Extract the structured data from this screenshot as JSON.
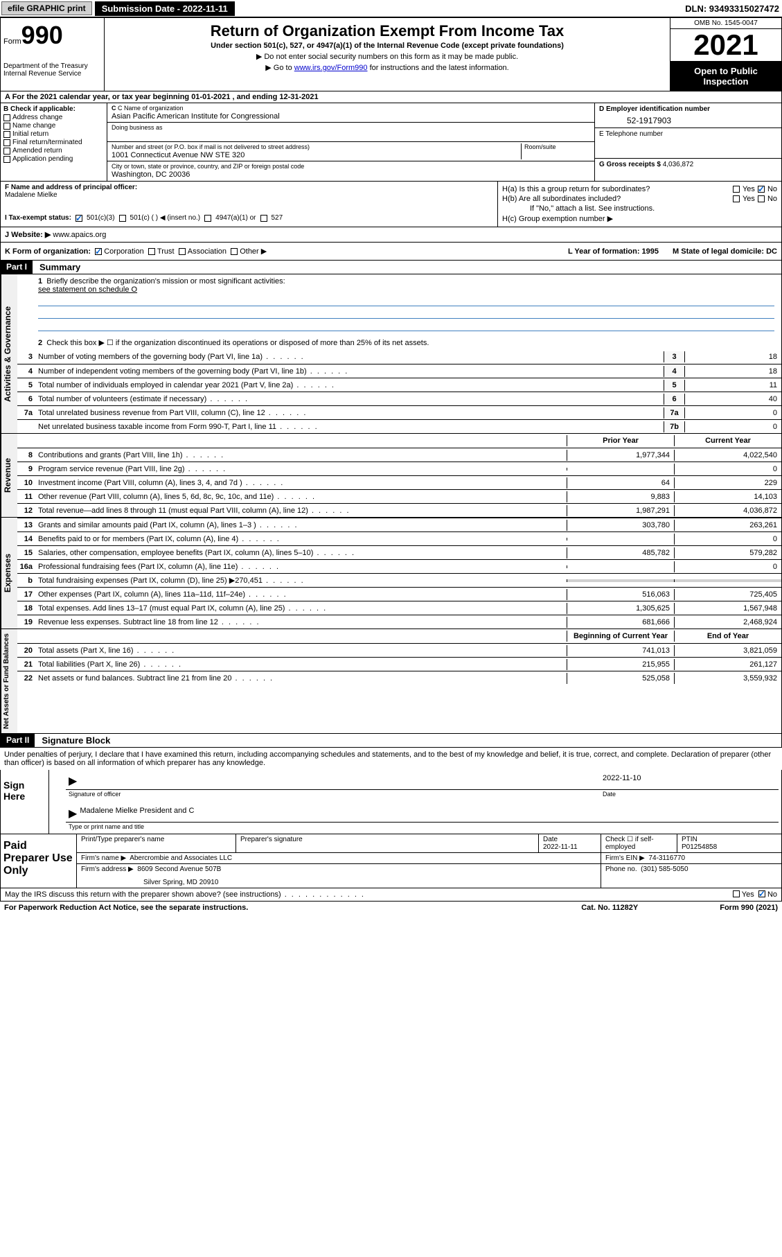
{
  "topbar": {
    "efile_btn": "efile GRAPHIC print",
    "sub_date_label": "Submission Date - 2022-11-11",
    "dln": "DLN: 93493315027472"
  },
  "header": {
    "form_word": "Form",
    "form_num": "990",
    "dept": "Department of the Treasury Internal Revenue Service",
    "title": "Return of Organization Exempt From Income Tax",
    "subtitle": "Under section 501(c), 527, or 4947(a)(1) of the Internal Revenue Code (except private foundations)",
    "sub1": "▶ Do not enter social security numbers on this form as it may be made public.",
    "sub2_pre": "▶ Go to ",
    "sub2_link": "www.irs.gov/Form990",
    "sub2_post": " for instructions and the latest information.",
    "omb": "OMB No. 1545-0047",
    "year": "2021",
    "open_public": "Open to Public Inspection"
  },
  "row_a": "A For the 2021 calendar year, or tax year beginning 01-01-2021   , and ending 12-31-2021",
  "col_b_label": "B Check if applicable:",
  "col_b_items": [
    "Address change",
    "Name change",
    "Initial return",
    "Final return/terminated",
    "Amended return",
    "Application pending"
  ],
  "col_c": {
    "name_label": "C Name of organization",
    "name": "Asian Pacific American Institute for Congressional",
    "dba_label": "Doing business as",
    "addr_label": "Number and street (or P.O. box if mail is not delivered to street address)",
    "room_label": "Room/suite",
    "addr": "1001 Connecticut Avenue NW STE 320",
    "city_label": "City or town, state or province, country, and ZIP or foreign postal code",
    "city": "Washington, DC  20036"
  },
  "col_d": {
    "label": "D Employer identification number",
    "ein": "52-1917903",
    "e_label": "E Telephone number",
    "g_label": "G Gross receipts $",
    "g_val": "4,036,872"
  },
  "row_f": {
    "label": "F  Name and address of principal officer:",
    "name": "Madalene Mielke"
  },
  "row_h": {
    "ha": "H(a)  Is this a group return for subordinates?",
    "hb": "H(b)  Are all subordinates included?",
    "hb_note": "If \"No,\" attach a list. See instructions.",
    "hc": "H(c)  Group exemption number ▶"
  },
  "row_i": {
    "label": "I    Tax-exempt status:",
    "opt1": "501(c)(3)",
    "opt2": "501(c) (  ) ◀ (insert no.)",
    "opt3": "4947(a)(1) or",
    "opt4": "527"
  },
  "row_j": {
    "label": "J   Website: ▶ ",
    "val": "www.apaics.org"
  },
  "row_k": {
    "label": "K Form of organization:",
    "opts": [
      "Corporation",
      "Trust",
      "Association",
      "Other ▶"
    ],
    "l": "L Year of formation: 1995",
    "m": "M State of legal domicile: DC"
  },
  "part1": {
    "label": "Part I",
    "title": "Summary"
  },
  "mission": {
    "num": "1",
    "text": "Briefly describe the organization's mission or most significant activities:",
    "line1": "see statement on schedule O"
  },
  "line2": "Check this box ▶ ☐  if the organization discontinued its operations or disposed of more than 25% of its net assets.",
  "gov_rows": [
    {
      "n": "3",
      "t": "Number of voting members of the governing body (Part VI, line 1a)",
      "c": "3",
      "v": "18"
    },
    {
      "n": "4",
      "t": "Number of independent voting members of the governing body (Part VI, line 1b)",
      "c": "4",
      "v": "18"
    },
    {
      "n": "5",
      "t": "Total number of individuals employed in calendar year 2021 (Part V, line 2a)",
      "c": "5",
      "v": "11"
    },
    {
      "n": "6",
      "t": "Total number of volunteers (estimate if necessary)",
      "c": "6",
      "v": "40"
    },
    {
      "n": "7a",
      "t": "Total unrelated business revenue from Part VIII, column (C), line 12",
      "c": "7a",
      "v": "0"
    },
    {
      "n": "",
      "t": "Net unrelated business taxable income from Form 990-T, Part I, line 11",
      "c": "7b",
      "v": "0"
    }
  ],
  "py_cy_header": {
    "prior": "Prior Year",
    "current": "Current Year"
  },
  "revenue_rows": [
    {
      "n": "8",
      "t": "Contributions and grants (Part VIII, line 1h)",
      "p": "1,977,344",
      "c": "4,022,540"
    },
    {
      "n": "9",
      "t": "Program service revenue (Part VIII, line 2g)",
      "p": "",
      "c": "0"
    },
    {
      "n": "10",
      "t": "Investment income (Part VIII, column (A), lines 3, 4, and 7d )",
      "p": "64",
      "c": "229"
    },
    {
      "n": "11",
      "t": "Other revenue (Part VIII, column (A), lines 5, 6d, 8c, 9c, 10c, and 11e)",
      "p": "9,883",
      "c": "14,103"
    },
    {
      "n": "12",
      "t": "Total revenue—add lines 8 through 11 (must equal Part VIII, column (A), line 12)",
      "p": "1,987,291",
      "c": "4,036,872"
    }
  ],
  "expense_rows": [
    {
      "n": "13",
      "t": "Grants and similar amounts paid (Part IX, column (A), lines 1–3 )",
      "p": "303,780",
      "c": "263,261"
    },
    {
      "n": "14",
      "t": "Benefits paid to or for members (Part IX, column (A), line 4)",
      "p": "",
      "c": "0"
    },
    {
      "n": "15",
      "t": "Salaries, other compensation, employee benefits (Part IX, column (A), lines 5–10)",
      "p": "485,782",
      "c": "579,282"
    },
    {
      "n": "16a",
      "t": "Professional fundraising fees (Part IX, column (A), line 11e)",
      "p": "",
      "c": "0"
    },
    {
      "n": "b",
      "t": "Total fundraising expenses (Part IX, column (D), line 25) ▶270,451",
      "p": "shaded",
      "c": "shaded"
    },
    {
      "n": "17",
      "t": "Other expenses (Part IX, column (A), lines 11a–11d, 11f–24e)",
      "p": "516,063",
      "c": "725,405"
    },
    {
      "n": "18",
      "t": "Total expenses. Add lines 13–17 (must equal Part IX, column (A), line 25)",
      "p": "1,305,625",
      "c": "1,567,948"
    },
    {
      "n": "19",
      "t": "Revenue less expenses. Subtract line 18 from line 12",
      "p": "681,666",
      "c": "2,468,924"
    }
  ],
  "na_header": {
    "beg": "Beginning of Current Year",
    "end": "End of Year"
  },
  "netasset_rows": [
    {
      "n": "20",
      "t": "Total assets (Part X, line 16)",
      "p": "741,013",
      "c": "3,821,059"
    },
    {
      "n": "21",
      "t": "Total liabilities (Part X, line 26)",
      "p": "215,955",
      "c": "261,127"
    },
    {
      "n": "22",
      "t": "Net assets or fund balances. Subtract line 21 from line 20",
      "p": "525,058",
      "c": "3,559,932"
    }
  ],
  "part2": {
    "label": "Part II",
    "title": "Signature Block"
  },
  "sig_decl": "Under penalties of perjury, I declare that I have examined this return, including accompanying schedules and statements, and to the best of my knowledge and belief, it is true, correct, and complete. Declaration of preparer (other than officer) is based on all information of which preparer has any knowledge.",
  "sign_here": "Sign Here",
  "sig": {
    "date": "2022-11-10",
    "officer_label": "Signature of officer",
    "date_label": "Date",
    "name": "Madalene Mielke  President and C",
    "name_label": "Type or print name and title"
  },
  "paid_label": "Paid Preparer Use Only",
  "paid": {
    "h_name": "Print/Type preparer's name",
    "h_sig": "Preparer's signature",
    "h_date": "Date",
    "date": "2022-11-11",
    "check_label": "Check ☐ if self-employed",
    "ptin_label": "PTIN",
    "ptin": "P01254858",
    "firm_name_label": "Firm's name     ▶",
    "firm_name": "Abercrombie and Associates LLC",
    "firm_ein_label": "Firm's EIN ▶",
    "firm_ein": "74-3116770",
    "firm_addr_label": "Firm's address ▶",
    "firm_addr1": "8609 Second Avenue 507B",
    "firm_addr2": "Silver Spring, MD  20910",
    "phone_label": "Phone no.",
    "phone": "(301) 585-5050"
  },
  "discuss": "May the IRS discuss this return with the preparer shown above? (see instructions)",
  "footer": {
    "left": "For Paperwork Reduction Act Notice, see the separate instructions.",
    "mid": "Cat. No. 11282Y",
    "right": "Form 990 (2021)"
  },
  "yn": {
    "yes": "Yes",
    "no": "No"
  }
}
